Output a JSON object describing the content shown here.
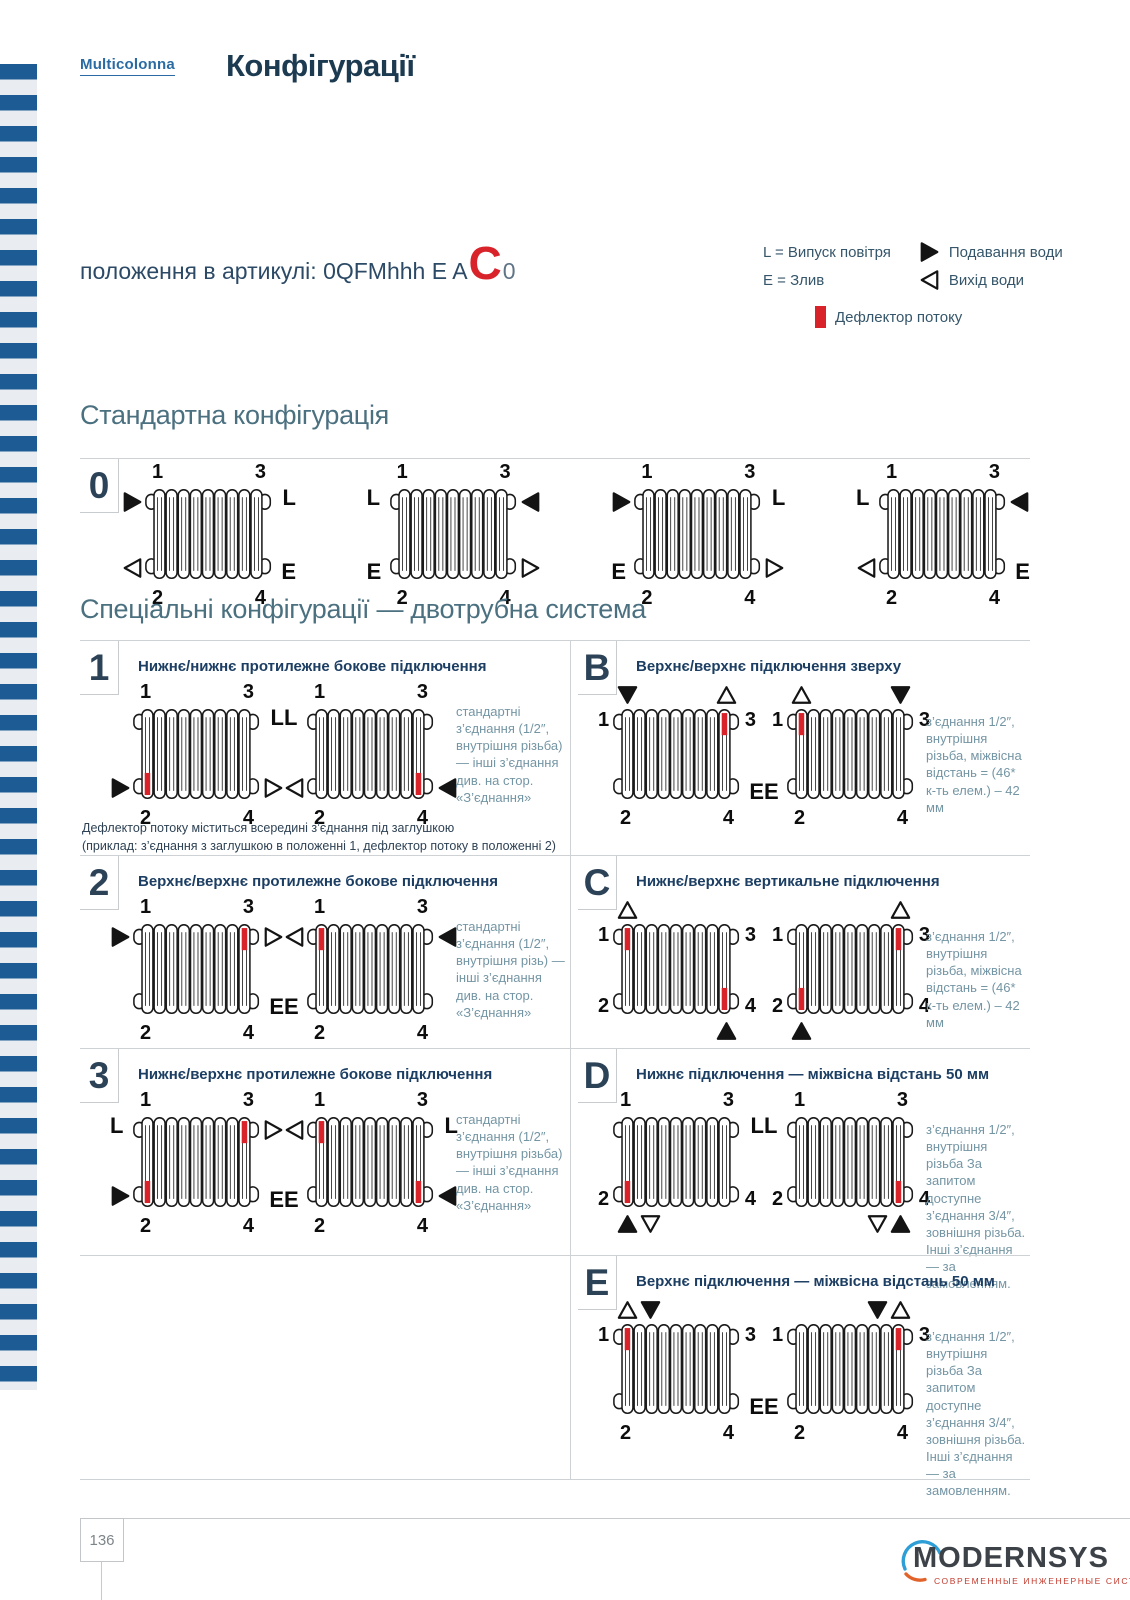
{
  "header": {
    "brand": "Multicolonna",
    "title": "Конфігурації"
  },
  "article": {
    "label": "положення в артикулі: 0QFMhhh E A",
    "highlight": "C",
    "suffix": "0"
  },
  "legend": {
    "l": "L = Випуск повітря",
    "e": "E = Злив",
    "supply": "Подавання води",
    "outlet": "Вихід води",
    "deflector": "Дефлектор потоку"
  },
  "colors": {
    "red": "#d8232a",
    "navy": "#1c3a50",
    "steel": "#4b7080",
    "stripe_blue": "#1d5b94"
  },
  "positions": {
    "tl": "1",
    "tr": "3",
    "bl": "2",
    "br": "4"
  },
  "standard": {
    "title": "Стандартна конфігурація",
    "badge": "0",
    "diagrams": [
      {
        "side": {
          "tl": "rf",
          "tr": "L",
          "bl": "lo",
          "br": "E"
        }
      },
      {
        "side": {
          "tl": "L",
          "tr": "lf",
          "bl": "E",
          "br": "ro"
        }
      },
      {
        "side": {
          "tl": "rf",
          "tr": "L",
          "bl": "E",
          "br": "ro"
        }
      },
      {
        "side": {
          "tl": "L",
          "tr": "lf",
          "bl": "lo",
          "br": "E"
        }
      }
    ]
  },
  "special": {
    "title": "Спеціальні конфігурації — двотрубна система",
    "configs": [
      {
        "badge": "1",
        "col": "left",
        "row": 0,
        "title": "Нижнє/нижнє протилежне бокове підключення",
        "note": "стандартні з’єднання (1/2″, внутрішня різьба) — інші з’єднання див. на стор. «З’єднання»",
        "footnote": "Дефлектор потоку міститься всередині з’єднання під заглушкою\n(приклад: з’єднання з заглушкою в положенні 1, дефлектор потоку в положенні 2)",
        "diagrams": [
          {
            "side": {
              "tr": "L",
              "bl": "rf",
              "br": "ro"
            },
            "defl": [
              "bl"
            ]
          },
          {
            "side": {
              "tl": "L",
              "bl": "lo",
              "br": "lf"
            },
            "defl": [
              "br"
            ]
          }
        ]
      },
      {
        "badge": "B",
        "col": "right",
        "row": 0,
        "title": "Верхнє/верхнє підключення зверху",
        "note": "з’єднання 1/2″, внутрішня різьба, міжвісна відстань = (46* к-ть елем.) – 42 мм",
        "diagrams": [
          {
            "side": {
              "br": "E"
            },
            "top": {
              "left": [
                "fd"
              ],
              "right": [
                "ou"
              ]
            },
            "defl": [
              "tr"
            ]
          },
          {
            "side": {
              "bl": "E"
            },
            "top": {
              "left": [
                "ou"
              ],
              "right": [
                "fd"
              ]
            },
            "defl": [
              "tl"
            ]
          }
        ]
      },
      {
        "badge": "2",
        "col": "left",
        "row": 1,
        "title": "Верхнє/верхнє протилежне бокове підключення",
        "note": "стандартні з’єднання (1/2″, внутрішня різь) — інші з’єднання див. на стор. «З’єднання»",
        "diagrams": [
          {
            "side": {
              "tl": "rf",
              "tr": "ro",
              "br": "E"
            },
            "defl": [
              "tr"
            ]
          },
          {
            "side": {
              "tl": "lo",
              "tr": "lf",
              "bl": "E"
            },
            "defl": [
              "tl"
            ]
          }
        ]
      },
      {
        "badge": "C",
        "col": "right",
        "row": 1,
        "title": "Нижнє/верхнє вертикальне підключення",
        "note": "з’єднання 1/2″, внутрішня різьба, міжвісна відстань = (46* к-ть елем.) – 42 мм",
        "diagrams": [
          {
            "top": {
              "left": [
                "ou"
              ]
            },
            "bottom": {
              "right": [
                "fu"
              ]
            },
            "defl": [
              "tl",
              "br"
            ]
          },
          {
            "top": {
              "right": [
                "ou"
              ]
            },
            "bottom": {
              "left": [
                "fu"
              ]
            },
            "defl": [
              "tr",
              "bl"
            ]
          }
        ]
      },
      {
        "badge": "3",
        "col": "left",
        "row": 2,
        "title": "Нижнє/верхнє протилежне бокове підключення",
        "note": "стандартні з’єднання (1/2″, внутрішня різьба) — інші з’єднання див. на стор. «З’єднання»",
        "diagrams": [
          {
            "side": {
              "tl": "L",
              "tr": "ro",
              "bl": "rf",
              "br": "E"
            },
            "defl": [
              "tr",
              "bl"
            ]
          },
          {
            "side": {
              "tl": "lo",
              "tr": "L",
              "bl": "E",
              "br": "lf"
            },
            "defl": [
              "tl",
              "br"
            ]
          }
        ]
      },
      {
        "badge": "D",
        "col": "right",
        "row": 2,
        "title": "Нижнє підключення — міжвісна відстань 50 мм",
        "note": "з’єднання 1/2″, внутрішня різьба За запитом доступне з’єднання 3/4″, зовнішня різьба. Інші з’єднання — за замовленням.",
        "diagrams": [
          {
            "side": {
              "tr": "L"
            },
            "bottom": {
              "left": [
                "fu",
                "od"
              ]
            },
            "defl": [
              "bl"
            ]
          },
          {
            "side": {
              "tl": "L"
            },
            "bottom": {
              "right": [
                "od",
                "fu"
              ]
            },
            "defl": [
              "br"
            ]
          }
        ]
      },
      {
        "badge": "E",
        "col": "right",
        "row": 3,
        "title": "Верхнє підключення — міжвісна відстань 50 мм",
        "note": "з’єднання 1/2″, внутрішня різьба За запитом доступне з’єднання 3/4″, зовнішня різьба. Інші з’єднання — за замовленням.",
        "diagrams": [
          {
            "side": {
              "br": "E"
            },
            "top": {
              "left": [
                "ou",
                "fd"
              ]
            },
            "defl": [
              "tl"
            ]
          },
          {
            "side": {
              "bl": "E"
            },
            "top": {
              "right": [
                "fd",
                "ou"
              ]
            },
            "defl": [
              "tr"
            ]
          }
        ]
      }
    ]
  },
  "footer": {
    "page": "136",
    "logo": "MODERNSYS",
    "tagline": "СОВРЕМЕННЫЕ ИНЖЕНЕРНЫЕ СИСТЕМЫ"
  }
}
